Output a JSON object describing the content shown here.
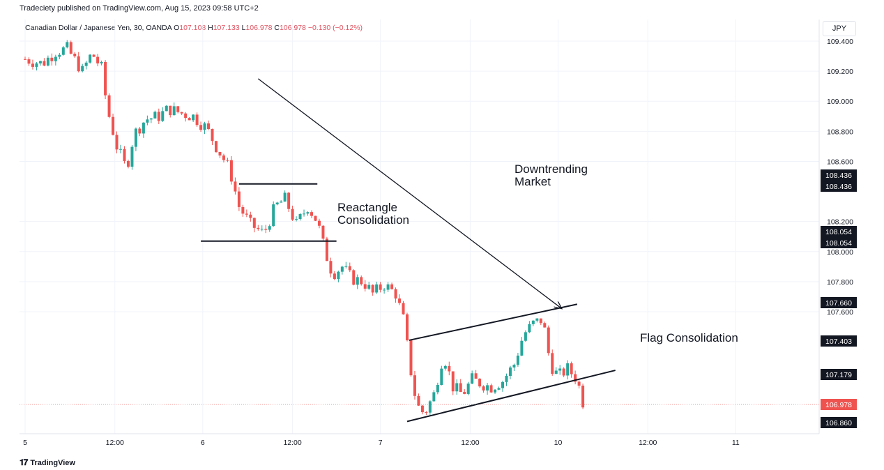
{
  "header": {
    "publisher": "Tradeciety published on TradingView.com, Aug 15, 2023 09:58 UTC+2",
    "symbol": "Canadian Dollar / Japanese Yen, 30, OANDA",
    "o_label": "O",
    "o_value": "107.108",
    "h_label": "H",
    "h_value": "107.133",
    "l_label": "L",
    "l_value": "106.978",
    "c_label": "C",
    "c_value": "106.978",
    "change": "−0.130 (−0.12%)"
  },
  "currency": "JPY",
  "footer": {
    "logo_text": "TradingView",
    "logo_icon": "tradingview-logo-icon"
  },
  "colors": {
    "up": "#26a69a",
    "down": "#ef5350",
    "line": "#131722",
    "grid": "#f0f3fa",
    "last_price_tag": "#ef5350",
    "tag": "#131722"
  },
  "chart_data": {
    "type": "candlestick",
    "ylim": [
      106.8,
      109.45
    ],
    "y_ticks": [
      "109.400",
      "109.200",
      "109.000",
      "108.800",
      "108.600",
      "108.200",
      "108.000",
      "107.800",
      "107.600"
    ],
    "x_ticks": [
      "5",
      "12:00",
      "6",
      "12:00",
      "7",
      "12:00",
      "10",
      "12:00",
      "11"
    ],
    "price_tags": [
      {
        "label": "108.436",
        "value": 108.436
      },
      {
        "label": "108.436",
        "value": 108.436
      },
      {
        "label": "108.054",
        "value": 108.054
      },
      {
        "label": "108.054",
        "value": 108.054
      },
      {
        "label": "107.660",
        "value": 107.66
      },
      {
        "label": "107.403",
        "value": 107.403
      },
      {
        "label": "107.179",
        "value": 107.179
      },
      {
        "label": "106.860",
        "value": 106.86
      }
    ],
    "last_price": {
      "label": "106.978",
      "value": 106.978
    },
    "annotations": [
      {
        "lines": [
          "Downtrending",
          "Market"
        ]
      },
      {
        "lines": [
          "Reactangle",
          "Consolidation"
        ]
      },
      {
        "lines": [
          "Flag Consolidation"
        ]
      }
    ],
    "trendlines": [
      {
        "name": "downtrend-arrow",
        "from": [
          12.2,
          109.15
        ],
        "to": [
          28.1,
          107.62
        ],
        "arrow": true
      },
      {
        "name": "rectangle-top",
        "from": [
          11.2,
          108.45
        ],
        "to": [
          15.3,
          108.45
        ],
        "arrow": false
      },
      {
        "name": "rectangle-bottom",
        "from": [
          9.2,
          108.07
        ],
        "to": [
          16.3,
          108.07
        ],
        "arrow": false
      },
      {
        "name": "flag-top",
        "from": [
          20.1,
          107.41
        ],
        "to": [
          28.9,
          107.65
        ],
        "arrow": false
      },
      {
        "name": "flag-bottom",
        "from": [
          20.0,
          106.87
        ],
        "to": [
          30.9,
          107.21
        ],
        "arrow": false
      }
    ],
    "x_tick_positions": [
      0,
      4.7,
      9.3,
      14.0,
      18.6,
      23.3,
      27.9,
      32.6,
      37.2
    ],
    "path_points": [
      [
        0,
        109.28
      ],
      [
        0.9,
        109.25
      ],
      [
        1.6,
        109.33
      ],
      [
        2.2,
        109.35
      ],
      [
        3.0,
        109.2
      ],
      [
        3.5,
        109.32
      ],
      [
        4.0,
        109.22
      ],
      [
        4.3,
        108.95
      ],
      [
        4.8,
        108.7
      ],
      [
        5.3,
        108.55
      ],
      [
        5.7,
        108.78
      ],
      [
        6.3,
        108.88
      ],
      [
        7.0,
        108.9
      ],
      [
        7.5,
        108.95
      ],
      [
        8.2,
        108.92
      ],
      [
        8.8,
        108.9
      ],
      [
        9.5,
        108.82
      ],
      [
        10.0,
        108.7
      ],
      [
        10.7,
        108.55
      ],
      [
        11.2,
        108.3
      ],
      [
        11.8,
        108.18
      ],
      [
        12.5,
        108.12
      ],
      [
        13.1,
        108.3
      ],
      [
        13.6,
        108.35
      ],
      [
        14.2,
        108.18
      ],
      [
        14.8,
        108.3
      ],
      [
        15.3,
        108.2
      ],
      [
        15.7,
        108.0
      ],
      [
        16.1,
        107.85
      ],
      [
        16.6,
        107.9
      ],
      [
        17.1,
        107.82
      ],
      [
        17.7,
        107.8
      ],
      [
        18.2,
        107.72
      ],
      [
        18.8,
        107.78
      ],
      [
        19.4,
        107.72
      ],
      [
        19.8,
        107.55
      ],
      [
        20.2,
        107.2
      ],
      [
        20.5,
        106.98
      ],
      [
        20.9,
        106.92
      ],
      [
        21.4,
        107.05
      ],
      [
        21.9,
        107.32
      ],
      [
        22.4,
        107.1
      ],
      [
        22.9,
        107.05
      ],
      [
        23.4,
        107.15
      ],
      [
        23.9,
        107.12
      ],
      [
        24.4,
        107.1
      ],
      [
        25.0,
        107.14
      ],
      [
        25.6,
        107.25
      ],
      [
        26.1,
        107.45
      ],
      [
        26.6,
        107.52
      ],
      [
        27.1,
        107.55
      ],
      [
        27.5,
        107.25
      ],
      [
        27.9,
        107.17
      ],
      [
        28.4,
        107.22
      ],
      [
        28.9,
        107.15
      ],
      [
        29.2,
        107.0
      ]
    ]
  }
}
